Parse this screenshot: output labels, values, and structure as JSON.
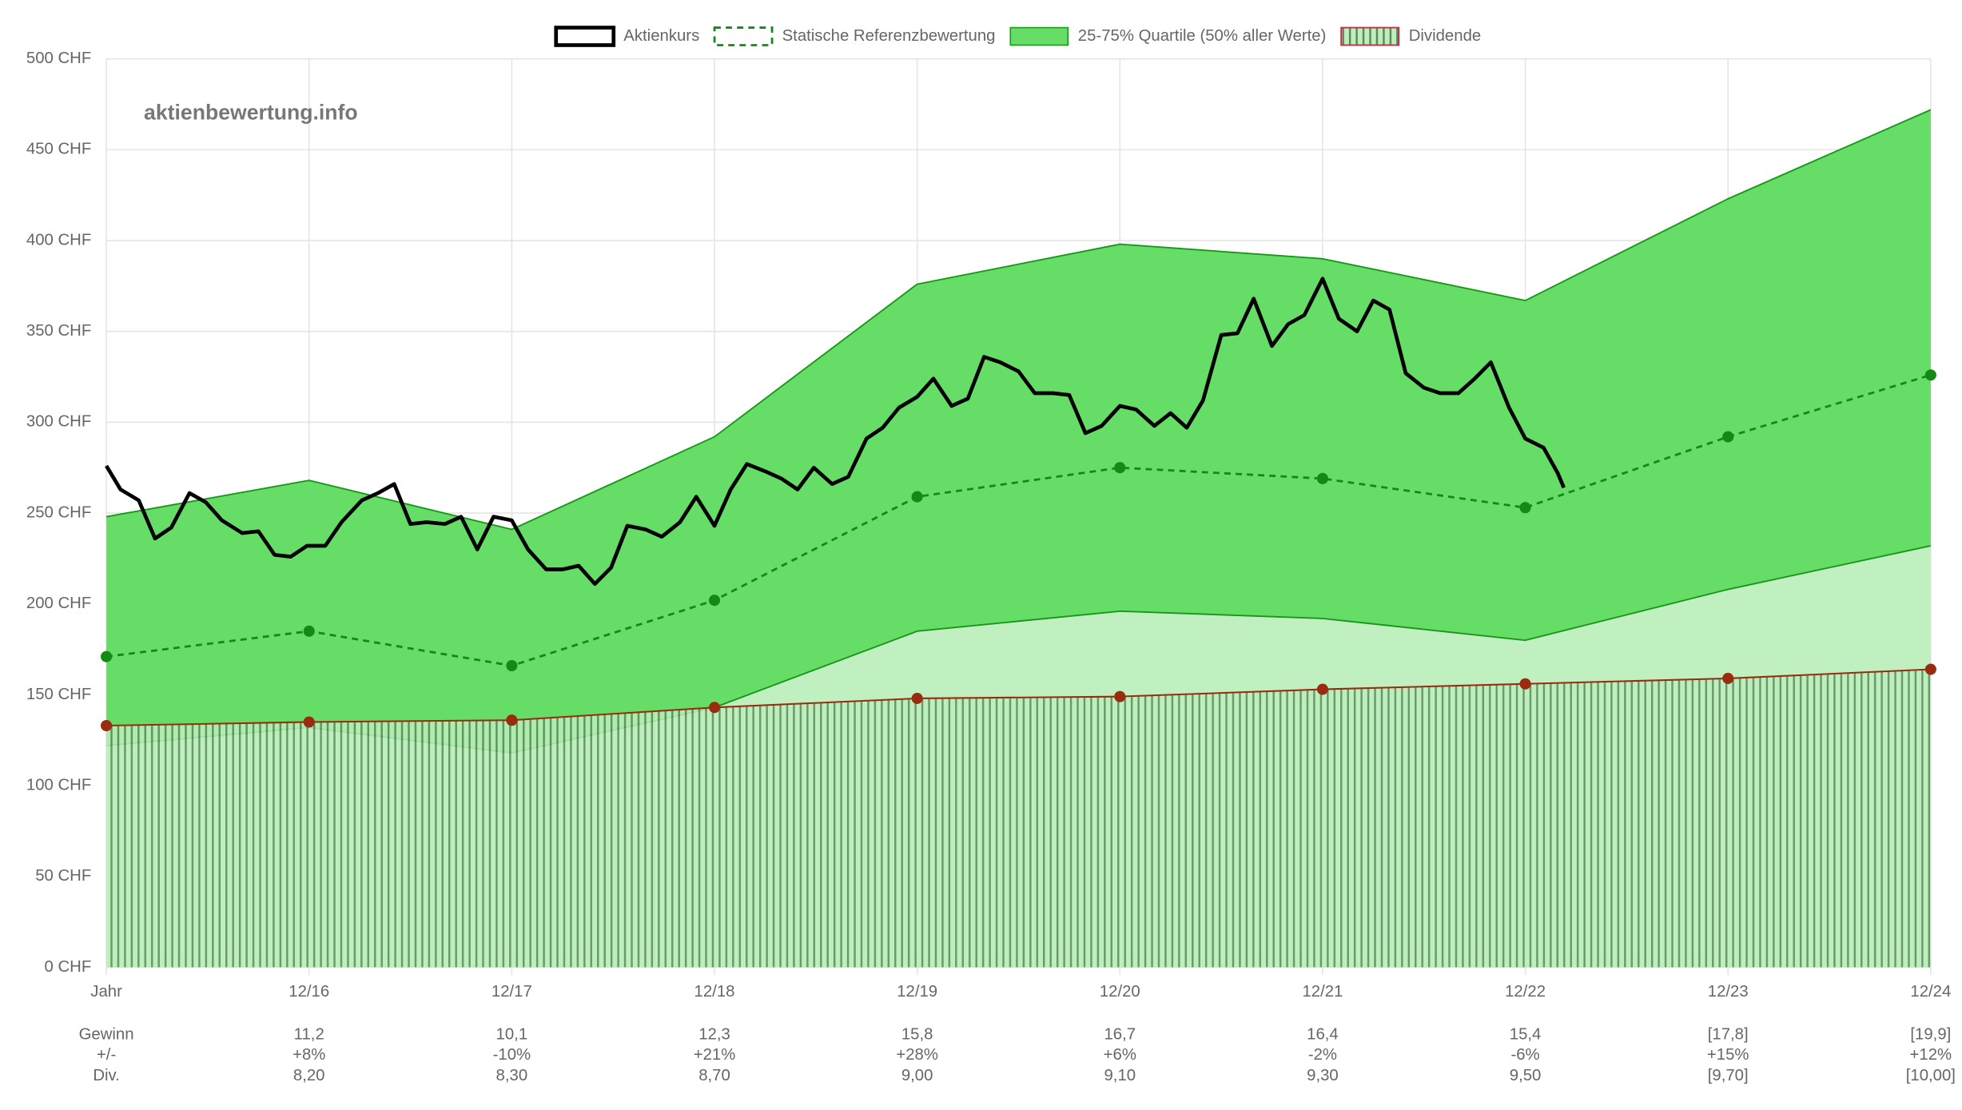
{
  "chart_data": {
    "type": "line",
    "watermark": "aktienbewertung.info",
    "categories": [
      "Jahr",
      "12/16",
      "12/17",
      "12/18",
      "12/19",
      "12/20",
      "12/21",
      "12/22",
      "12/23",
      "12/24"
    ],
    "ylim": [
      0,
      500
    ],
    "yticks": [
      {
        "value": 0,
        "label": "0 CHF"
      },
      {
        "value": 50,
        "label": "50 CHF"
      },
      {
        "value": 100,
        "label": "100 CHF"
      },
      {
        "value": 150,
        "label": "150 CHF"
      },
      {
        "value": 200,
        "label": "200 CHF"
      },
      {
        "value": 250,
        "label": "250 CHF"
      },
      {
        "value": 300,
        "label": "300 CHF"
      },
      {
        "value": 350,
        "label": "350 CHF"
      },
      {
        "value": 400,
        "label": "400 CHF"
      },
      {
        "value": 450,
        "label": "450 CHF"
      },
      {
        "value": 500,
        "label": "500 CHF"
      }
    ],
    "grid": true,
    "legend": "top",
    "price": {
      "name": "Aktienkurs",
      "color": "#000000",
      "x": [
        0,
        0.07,
        0.16,
        0.24,
        0.32,
        0.41,
        0.49,
        0.57,
        0.67,
        0.75,
        0.83,
        0.91,
        0.99,
        1.08,
        1.16,
        1.26,
        1.34,
        1.42,
        1.5,
        1.58,
        1.67,
        1.75,
        1.83,
        1.91,
        2,
        2.08,
        2.17,
        2.25,
        2.33,
        2.41,
        2.49,
        2.57,
        2.66,
        2.74,
        2.83,
        2.91,
        3,
        3.08,
        3.16,
        3.25,
        3.33,
        3.41,
        3.49,
        3.58,
        3.66,
        3.75,
        3.83,
        3.91,
        4,
        4.08,
        4.17,
        4.25,
        4.33,
        4.41,
        4.5,
        4.58,
        4.67,
        4.75,
        4.83,
        4.91,
        5,
        5.08,
        5.17,
        5.25,
        5.33,
        5.41,
        5.5,
        5.58,
        5.66,
        5.75,
        5.83,
        5.91,
        6,
        6.08,
        6.17,
        6.25,
        6.33,
        6.41,
        6.5,
        6.58,
        6.67,
        6.75,
        6.83,
        6.92,
        7,
        7.09,
        7.16,
        7.19
      ],
      "values": [
        276,
        263,
        257,
        236,
        242,
        261,
        256,
        246,
        239,
        240,
        227,
        226,
        232,
        232,
        245,
        257,
        261,
        266,
        244,
        245,
        244,
        248,
        230,
        248,
        246,
        230,
        219,
        219,
        221,
        211,
        220,
        243,
        241,
        237,
        245,
        259,
        243,
        263,
        277,
        273,
        269,
        263,
        275,
        266,
        270,
        291,
        297,
        308,
        314,
        324,
        309,
        313,
        336,
        333,
        328,
        316,
        316,
        315,
        294,
        298,
        309,
        307,
        298,
        305,
        297,
        312,
        348,
        349,
        368,
        342,
        354,
        359,
        379,
        357,
        350,
        367,
        362,
        327,
        319,
        316,
        316,
        324,
        333,
        308,
        291,
        286,
        272,
        264
      ]
    },
    "reference": {
      "name": "Statische Referenzbewertung",
      "color": "#138a13",
      "values": [
        171,
        185,
        166,
        202,
        259,
        275,
        269,
        253,
        292,
        326
      ]
    },
    "quartiles": {
      "name": "25-75% Quartile (50% aller Werte)",
      "color": "#66dd66",
      "border": "#1a961a",
      "below_color": "#c0f0c0",
      "high": [
        248,
        268,
        241,
        292,
        376,
        398,
        390,
        367,
        423,
        472
      ],
      "low": [
        122,
        132,
        118,
        143,
        185,
        196,
        192,
        180,
        208,
        232
      ]
    },
    "dividend": {
      "name": "Dividende",
      "color": "#9a2a10",
      "values": [
        133,
        135,
        136,
        143,
        148,
        149,
        153,
        156,
        159,
        164
      ]
    },
    "table": [
      {
        "label": "Gewinn",
        "cells": [
          "11,2",
          "10,1",
          "12,3",
          "15,8",
          "16,7",
          "16,4",
          "15,4",
          "[17,8]",
          "[19,9]"
        ]
      },
      {
        "label": "+/-",
        "cells": [
          "+8%",
          "-10%",
          "+21%",
          "+28%",
          "+6%",
          "-2%",
          "-6%",
          "+15%",
          "+12%"
        ]
      },
      {
        "label": "Div.",
        "cells": [
          "8,20",
          "8,30",
          "8,70",
          "9,00",
          "9,10",
          "9,30",
          "9,50",
          "[9,70]",
          "[10,00]"
        ]
      }
    ]
  }
}
